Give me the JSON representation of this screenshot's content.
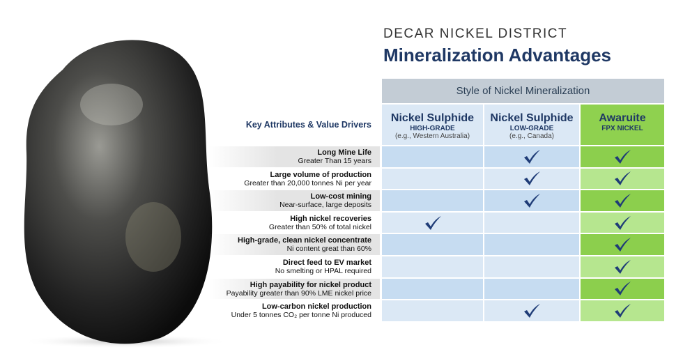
{
  "header": {
    "kicker": "DECAR NICKEL DISTRICT",
    "title": "Mineralization Advantages"
  },
  "table": {
    "group_header": "Style of Nickel Mineralization",
    "row_header_label": "Key Attributes & Value Drivers",
    "columns": [
      {
        "name": "Nickel Sulphide",
        "grade": "HIGH-GRADE",
        "example": "(e.g., Western Australia)"
      },
      {
        "name": "Nickel Sulphide",
        "grade": "LOW-GRADE",
        "example": "(e.g., Canada)"
      },
      {
        "name": "Awaruite",
        "grade": "FPX NICKEL"
      }
    ],
    "rows": [
      {
        "attribute": "Long Mine Life",
        "detail": "Greater Than 15 years",
        "checks": [
          false,
          true,
          true
        ]
      },
      {
        "attribute": "Large volume of production",
        "detail": "Greater than 20,000 tonnes Ni per year",
        "checks": [
          false,
          true,
          true
        ]
      },
      {
        "attribute": "Low-cost mining",
        "detail": "Near-surface, large deposits",
        "checks": [
          false,
          true,
          true
        ]
      },
      {
        "attribute": "High nickel recoveries",
        "detail": "Greater than 50% of total nickel",
        "checks": [
          true,
          false,
          true
        ]
      },
      {
        "attribute": "High-grade, clean nickel concentrate",
        "detail": "Ni content great than 60%",
        "checks": [
          false,
          false,
          true
        ]
      },
      {
        "attribute": "Direct feed to EV market",
        "detail": "No smelting or HPAL required",
        "checks": [
          false,
          false,
          true
        ]
      },
      {
        "attribute": "High payability for nickel product",
        "detail": "Payability greater than 90% LME nickel price",
        "checks": [
          false,
          false,
          true
        ]
      },
      {
        "attribute": "Low-carbon nickel production",
        "detail": "Under 5 tonnes CO₂ per tonne Ni produced",
        "checks": [
          false,
          true,
          true
        ]
      }
    ]
  }
}
